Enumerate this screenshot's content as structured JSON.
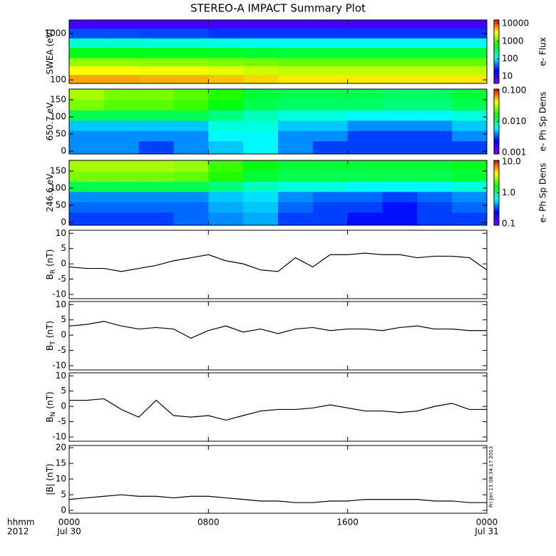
{
  "title": "STEREO-A IMPACT Summary Plot",
  "timestamp": "Fri Jan 11 08:34:17 2013",
  "colormap": [
    "#7f00ff",
    "#0000ff",
    "#00ffff",
    "#00ff00",
    "#ffff00",
    "#ff0000"
  ],
  "x_axis": {
    "xlim": [
      0,
      24
    ],
    "xticks": [
      {
        "value": 0,
        "label": "0000"
      },
      {
        "value": 8,
        "label": "0800"
      },
      {
        "value": 16,
        "label": "1600"
      },
      {
        "value": 24,
        "label": "0000"
      }
    ],
    "date_labels": [
      {
        "value": 0,
        "label": "Jul 30"
      },
      {
        "value": 24,
        "label": "Jul 31"
      }
    ],
    "corner_labels": [
      "hhmm",
      "2012"
    ]
  },
  "chart_data": [
    {
      "type": "heatmap",
      "ylabel": "SWEA (eV)",
      "ylog": true,
      "ylim": [
        84,
        1960
      ],
      "yticks": [
        100,
        1000
      ],
      "zlabel": "e- Flux",
      "zlim": [
        4,
        16000
      ],
      "zticks": [
        10,
        100,
        1000,
        10000
      ],
      "x_edges": [
        0,
        2,
        4,
        6,
        8,
        10,
        12,
        14,
        16,
        18,
        20,
        22,
        24
      ],
      "y_edges": [
        84,
        130,
        200,
        300,
        500,
        800,
        1300,
        1960
      ],
      "z": [
        [
          5500,
          5500,
          5000,
          5000,
          4500,
          4000,
          3500,
          3500,
          3500,
          3500,
          3500,
          3500
        ],
        [
          3000,
          3000,
          2800,
          2800,
          2500,
          2200,
          2000,
          2000,
          2000,
          2000,
          2000,
          2000
        ],
        [
          1500,
          1500,
          1400,
          1400,
          1300,
          1200,
          1100,
          1100,
          1100,
          1100,
          1100,
          1100
        ],
        [
          500,
          500,
          480,
          480,
          450,
          420,
          400,
          400,
          400,
          400,
          400,
          400
        ],
        [
          150,
          150,
          140,
          140,
          130,
          120,
          120,
          120,
          120,
          120,
          120,
          120
        ],
        [
          35,
          35,
          33,
          33,
          30,
          30,
          30,
          30,
          30,
          30,
          30,
          30
        ],
        [
          9,
          9,
          9,
          9,
          9,
          9,
          9,
          9,
          9,
          9,
          9,
          9
        ]
      ]
    },
    {
      "type": "heatmap",
      "ylabel": "650.7 eV",
      "ylim": [
        -8,
        181
      ],
      "yticks": [
        0,
        50,
        100,
        150
      ],
      "zlabel": "e- Ph Sp Dens",
      "zlim": [
        0.0009,
        0.11
      ],
      "zticks": [
        {
          "value": 0.001,
          "label": "0.001"
        },
        {
          "value": 0.01,
          "label": "0.010"
        },
        {
          "value": 0.1,
          "label": "0.100"
        }
      ],
      "x_edges": [
        0,
        2,
        4,
        6,
        8,
        10,
        12,
        14,
        16,
        18,
        20,
        22,
        24
      ],
      "y_edges": [
        -8,
        30,
        60,
        90,
        120,
        150,
        181
      ],
      "z": [
        [
          0.004,
          0.004,
          0.003,
          0.004,
          0.005,
          0.006,
          0.004,
          0.003,
          0.003,
          0.003,
          0.003,
          0.003
        ],
        [
          0.004,
          0.004,
          0.004,
          0.004,
          0.006,
          0.006,
          0.004,
          0.004,
          0.003,
          0.003,
          0.003,
          0.004
        ],
        [
          0.005,
          0.005,
          0.005,
          0.005,
          0.007,
          0.007,
          0.005,
          0.005,
          0.004,
          0.004,
          0.004,
          0.005
        ],
        [
          0.012,
          0.012,
          0.012,
          0.012,
          0.01,
          0.008,
          0.007,
          0.007,
          0.006,
          0.006,
          0.006,
          0.007
        ],
        [
          0.025,
          0.022,
          0.022,
          0.02,
          0.015,
          0.012,
          0.011,
          0.011,
          0.011,
          0.01,
          0.01,
          0.012
        ],
        [
          0.03,
          0.025,
          0.025,
          0.022,
          0.018,
          0.013,
          0.012,
          0.012,
          0.012,
          0.011,
          0.011,
          0.013
        ]
      ]
    },
    {
      "type": "heatmap",
      "ylabel": "246.6 eV",
      "ylim": [
        -8,
        181
      ],
      "yticks": [
        0,
        50,
        100,
        150
      ],
      "zlabel": "e- Ph Sp Dens",
      "zlim": [
        0.09,
        11
      ],
      "zticks": [
        0.1,
        {
          "value": 1,
          "label": "1.0"
        },
        {
          "value": 10,
          "label": "10.0"
        }
      ],
      "x_edges": [
        0,
        2,
        4,
        6,
        8,
        10,
        12,
        14,
        16,
        18,
        20,
        22,
        24
      ],
      "y_edges": [
        -8,
        30,
        60,
        90,
        120,
        150,
        181
      ],
      "z": [
        [
          0.3,
          0.3,
          0.3,
          0.35,
          0.4,
          0.45,
          0.3,
          0.3,
          0.25,
          0.25,
          0.3,
          0.3
        ],
        [
          0.35,
          0.35,
          0.35,
          0.35,
          0.45,
          0.5,
          0.35,
          0.3,
          0.3,
          0.25,
          0.3,
          0.35
        ],
        [
          0.4,
          0.4,
          0.4,
          0.4,
          0.5,
          0.55,
          0.4,
          0.35,
          0.35,
          0.3,
          0.35,
          0.4
        ],
        [
          1.2,
          1.2,
          1.2,
          1.2,
          1,
          0.8,
          0.7,
          0.7,
          0.6,
          0.6,
          0.6,
          0.7
        ],
        [
          2.5,
          2.5,
          2.5,
          2.3,
          1.8,
          1.3,
          1.2,
          1.2,
          1.2,
          1.2,
          1.2,
          1.3
        ],
        [
          3,
          3,
          3,
          2.8,
          2,
          1.5,
          1.3,
          1.3,
          1.3,
          1.3,
          1.3,
          1.4
        ]
      ]
    },
    {
      "type": "line",
      "ylabel": "B",
      "ylabel_sub": "R",
      "ylabel_unit": "(nT)",
      "color": "#000000",
      "ylim": [
        -11.4,
        11
      ],
      "yticks": [
        -10,
        -5,
        0,
        5,
        10
      ],
      "x": [
        0,
        1,
        2,
        3,
        4,
        5,
        6,
        7,
        8,
        9,
        10,
        11,
        12,
        13,
        14,
        15,
        16,
        17,
        18,
        19,
        20,
        21,
        22,
        23,
        24
      ],
      "values": [
        -1,
        -1.5,
        -1.5,
        -2.5,
        -1.5,
        -0.5,
        1,
        2,
        3,
        1,
        0,
        -2,
        -2.5,
        2,
        -1,
        3,
        3,
        3.5,
        3,
        3,
        2,
        2.5,
        2.5,
        2,
        -2
      ]
    },
    {
      "type": "line",
      "ylabel": "B",
      "ylabel_sub": "T",
      "ylabel_unit": "(nT)",
      "color": "#000000",
      "ylim": [
        -11.4,
        11
      ],
      "yticks": [
        -10,
        -5,
        0,
        5,
        10
      ],
      "x": [
        0,
        1,
        2,
        3,
        4,
        5,
        6,
        7,
        8,
        9,
        10,
        11,
        12,
        13,
        14,
        15,
        16,
        17,
        18,
        19,
        20,
        21,
        22,
        23,
        24
      ],
      "values": [
        3,
        3.5,
        4.5,
        3,
        2,
        2.5,
        2,
        -1,
        1.5,
        3,
        1,
        2,
        0.5,
        2,
        2.5,
        1.5,
        2,
        2,
        1.5,
        2.5,
        3,
        2,
        2,
        1.5,
        1.5
      ]
    },
    {
      "type": "line",
      "ylabel": "B",
      "ylabel_sub": "N",
      "ylabel_unit": "(nT)",
      "color": "#000000",
      "ylim": [
        -11.4,
        11
      ],
      "yticks": [
        -10,
        -5,
        0,
        5,
        10
      ],
      "x": [
        0,
        1,
        2,
        3,
        4,
        5,
        6,
        7,
        8,
        9,
        10,
        11,
        12,
        13,
        14,
        15,
        16,
        17,
        18,
        19,
        20,
        21,
        22,
        23,
        24
      ],
      "values": [
        2,
        2,
        2.5,
        -1,
        -3.5,
        2,
        -3,
        -3.5,
        -3,
        -4.5,
        -3,
        -1.5,
        -1,
        -1,
        -0.5,
        0.5,
        -0.5,
        -1.5,
        -1.5,
        -2,
        -1.5,
        0,
        1,
        -1,
        -1
      ]
    },
    {
      "type": "line",
      "ylabel": "|B| (nT)",
      "color": "#000000",
      "ylim": [
        -0.9,
        20.7
      ],
      "yticks": [
        0,
        5,
        10,
        15,
        20
      ],
      "x": [
        0,
        1,
        2,
        3,
        4,
        5,
        6,
        7,
        8,
        9,
        10,
        11,
        12,
        13,
        14,
        15,
        16,
        17,
        18,
        19,
        20,
        21,
        22,
        23,
        24
      ],
      "values": [
        3.5,
        4,
        4.5,
        5,
        4.5,
        4.5,
        4,
        4.5,
        4.5,
        4,
        3.5,
        3,
        3,
        2.5,
        2.5,
        3,
        3,
        3.5,
        3.5,
        3.5,
        3.5,
        3,
        3,
        2.5,
        2.5
      ]
    }
  ]
}
